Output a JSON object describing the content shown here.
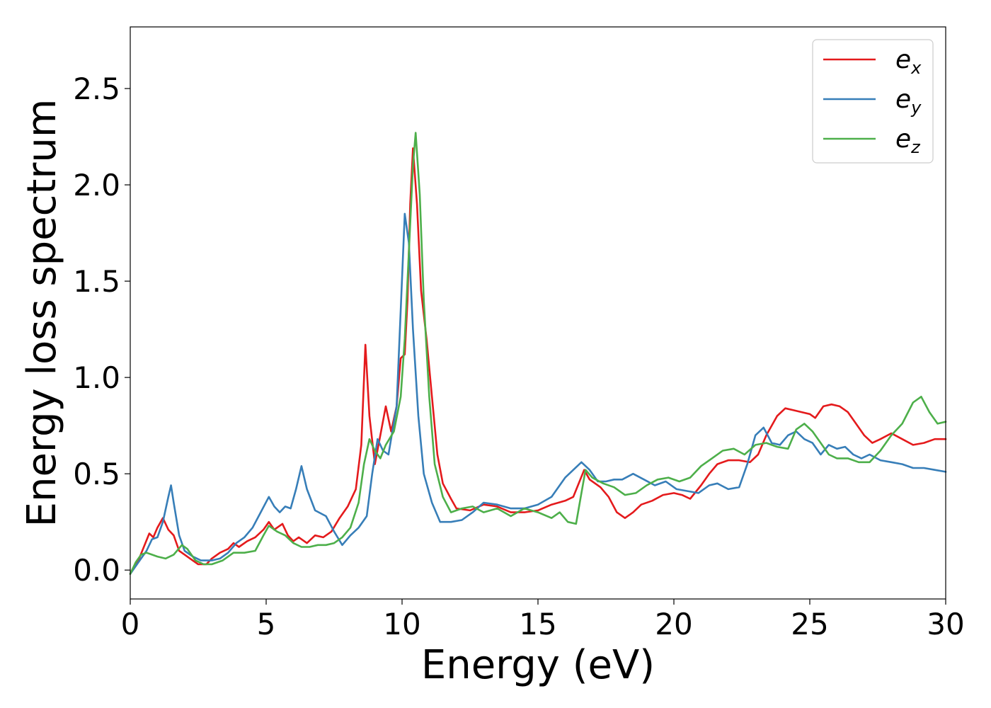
{
  "chart_data": {
    "type": "line",
    "xlabel": "Energy (eV)",
    "ylabel": "Energy loss spectrum",
    "xlim": [
      0,
      30
    ],
    "ylim": [
      -0.15,
      2.82
    ],
    "xticks": [
      0,
      5,
      10,
      15,
      20,
      25,
      30
    ],
    "xtick_labels": [
      "0",
      "5",
      "10",
      "15",
      "20",
      "25",
      "30"
    ],
    "yticks": [
      0.0,
      0.5,
      1.0,
      1.5,
      2.0,
      2.5
    ],
    "ytick_labels": [
      "0.0",
      "0.5",
      "1.0",
      "1.5",
      "2.0",
      "2.5"
    ],
    "grid": false,
    "legend_position": "top-right",
    "series": [
      {
        "name": "e_x",
        "base": "e",
        "sub": "x",
        "color": "#e41a1c",
        "points": [
          [
            0,
            -0.02
          ],
          [
            0.3,
            0.05
          ],
          [
            0.5,
            0.12
          ],
          [
            0.7,
            0.19
          ],
          [
            0.85,
            0.17
          ],
          [
            1.0,
            0.22
          ],
          [
            1.2,
            0.27
          ],
          [
            1.4,
            0.21
          ],
          [
            1.6,
            0.18
          ],
          [
            1.8,
            0.1
          ],
          [
            2.0,
            0.08
          ],
          [
            2.2,
            0.06
          ],
          [
            2.5,
            0.03
          ],
          [
            2.8,
            0.03
          ],
          [
            3.0,
            0.06
          ],
          [
            3.3,
            0.09
          ],
          [
            3.6,
            0.11
          ],
          [
            3.8,
            0.14
          ],
          [
            4.0,
            0.12
          ],
          [
            4.3,
            0.15
          ],
          [
            4.6,
            0.17
          ],
          [
            4.9,
            0.21
          ],
          [
            5.1,
            0.25
          ],
          [
            5.3,
            0.21
          ],
          [
            5.6,
            0.24
          ],
          [
            5.8,
            0.18
          ],
          [
            6.0,
            0.15
          ],
          [
            6.2,
            0.17
          ],
          [
            6.5,
            0.14
          ],
          [
            6.8,
            0.18
          ],
          [
            7.1,
            0.17
          ],
          [
            7.4,
            0.2
          ],
          [
            7.7,
            0.27
          ],
          [
            8.0,
            0.33
          ],
          [
            8.3,
            0.42
          ],
          [
            8.5,
            0.65
          ],
          [
            8.65,
            1.17
          ],
          [
            8.8,
            0.8
          ],
          [
            9.0,
            0.55
          ],
          [
            9.2,
            0.7
          ],
          [
            9.4,
            0.85
          ],
          [
            9.6,
            0.72
          ],
          [
            9.8,
            0.85
          ],
          [
            9.95,
            1.1
          ],
          [
            10.1,
            1.12
          ],
          [
            10.2,
            1.4
          ],
          [
            10.3,
            1.9
          ],
          [
            10.4,
            2.19
          ],
          [
            10.55,
            1.9
          ],
          [
            10.7,
            1.45
          ],
          [
            10.9,
            1.2
          ],
          [
            11.1,
            0.9
          ],
          [
            11.3,
            0.6
          ],
          [
            11.5,
            0.45
          ],
          [
            11.8,
            0.37
          ],
          [
            12.0,
            0.32
          ],
          [
            12.5,
            0.31
          ],
          [
            13.0,
            0.34
          ],
          [
            13.5,
            0.33
          ],
          [
            14.0,
            0.3
          ],
          [
            14.5,
            0.3
          ],
          [
            15.0,
            0.31
          ],
          [
            15.5,
            0.34
          ],
          [
            16.0,
            0.36
          ],
          [
            16.3,
            0.38
          ],
          [
            16.5,
            0.45
          ],
          [
            16.7,
            0.52
          ],
          [
            16.9,
            0.47
          ],
          [
            17.3,
            0.43
          ],
          [
            17.6,
            0.38
          ],
          [
            17.9,
            0.3
          ],
          [
            18.2,
            0.27
          ],
          [
            18.5,
            0.3
          ],
          [
            18.8,
            0.34
          ],
          [
            19.2,
            0.36
          ],
          [
            19.6,
            0.39
          ],
          [
            20.0,
            0.4
          ],
          [
            20.3,
            0.39
          ],
          [
            20.6,
            0.37
          ],
          [
            21.0,
            0.44
          ],
          [
            21.3,
            0.5
          ],
          [
            21.6,
            0.55
          ],
          [
            22.0,
            0.57
          ],
          [
            22.4,
            0.57
          ],
          [
            22.8,
            0.56
          ],
          [
            23.1,
            0.6
          ],
          [
            23.4,
            0.7
          ],
          [
            23.8,
            0.8
          ],
          [
            24.1,
            0.84
          ],
          [
            24.4,
            0.83
          ],
          [
            24.7,
            0.82
          ],
          [
            25.0,
            0.81
          ],
          [
            25.2,
            0.79
          ],
          [
            25.5,
            0.85
          ],
          [
            25.8,
            0.86
          ],
          [
            26.1,
            0.85
          ],
          [
            26.4,
            0.82
          ],
          [
            26.7,
            0.76
          ],
          [
            27.0,
            0.7
          ],
          [
            27.3,
            0.66
          ],
          [
            27.6,
            0.68
          ],
          [
            28.0,
            0.71
          ],
          [
            28.4,
            0.68
          ],
          [
            28.8,
            0.65
          ],
          [
            29.2,
            0.66
          ],
          [
            29.6,
            0.68
          ],
          [
            30.0,
            0.68
          ]
        ]
      },
      {
        "name": "e_y",
        "base": "e",
        "sub": "y",
        "color": "#377eb8",
        "points": [
          [
            0,
            -0.02
          ],
          [
            0.3,
            0.04
          ],
          [
            0.6,
            0.1
          ],
          [
            0.8,
            0.16
          ],
          [
            1.0,
            0.17
          ],
          [
            1.2,
            0.25
          ],
          [
            1.4,
            0.38
          ],
          [
            1.5,
            0.44
          ],
          [
            1.6,
            0.35
          ],
          [
            1.8,
            0.18
          ],
          [
            2.0,
            0.1
          ],
          [
            2.3,
            0.07
          ],
          [
            2.6,
            0.05
          ],
          [
            3.0,
            0.05
          ],
          [
            3.3,
            0.06
          ],
          [
            3.6,
            0.09
          ],
          [
            3.9,
            0.14
          ],
          [
            4.2,
            0.17
          ],
          [
            4.5,
            0.22
          ],
          [
            4.8,
            0.3
          ],
          [
            5.1,
            0.38
          ],
          [
            5.3,
            0.33
          ],
          [
            5.5,
            0.3
          ],
          [
            5.7,
            0.33
          ],
          [
            5.9,
            0.32
          ],
          [
            6.1,
            0.42
          ],
          [
            6.3,
            0.54
          ],
          [
            6.5,
            0.42
          ],
          [
            6.8,
            0.31
          ],
          [
            7.2,
            0.28
          ],
          [
            7.5,
            0.2
          ],
          [
            7.8,
            0.13
          ],
          [
            8.1,
            0.18
          ],
          [
            8.4,
            0.22
          ],
          [
            8.7,
            0.28
          ],
          [
            8.9,
            0.5
          ],
          [
            9.1,
            0.68
          ],
          [
            9.3,
            0.62
          ],
          [
            9.5,
            0.6
          ],
          [
            9.8,
            0.85
          ],
          [
            9.95,
            1.35
          ],
          [
            10.1,
            1.85
          ],
          [
            10.25,
            1.7
          ],
          [
            10.4,
            1.25
          ],
          [
            10.6,
            0.8
          ],
          [
            10.8,
            0.5
          ],
          [
            11.1,
            0.35
          ],
          [
            11.4,
            0.25
          ],
          [
            11.8,
            0.25
          ],
          [
            12.2,
            0.26
          ],
          [
            12.6,
            0.3
          ],
          [
            13.0,
            0.35
          ],
          [
            13.5,
            0.34
          ],
          [
            14.0,
            0.32
          ],
          [
            14.5,
            0.32
          ],
          [
            15.0,
            0.34
          ],
          [
            15.5,
            0.38
          ],
          [
            16.0,
            0.48
          ],
          [
            16.3,
            0.52
          ],
          [
            16.6,
            0.56
          ],
          [
            16.9,
            0.52
          ],
          [
            17.2,
            0.46
          ],
          [
            17.5,
            0.46
          ],
          [
            17.8,
            0.47
          ],
          [
            18.1,
            0.47
          ],
          [
            18.5,
            0.5
          ],
          [
            18.9,
            0.47
          ],
          [
            19.3,
            0.44
          ],
          [
            19.7,
            0.46
          ],
          [
            20.1,
            0.42
          ],
          [
            20.5,
            0.41
          ],
          [
            20.9,
            0.4
          ],
          [
            21.3,
            0.44
          ],
          [
            21.6,
            0.45
          ],
          [
            22.0,
            0.42
          ],
          [
            22.4,
            0.43
          ],
          [
            22.7,
            0.55
          ],
          [
            23.0,
            0.7
          ],
          [
            23.3,
            0.74
          ],
          [
            23.6,
            0.66
          ],
          [
            23.9,
            0.65
          ],
          [
            24.2,
            0.7
          ],
          [
            24.5,
            0.72
          ],
          [
            24.8,
            0.68
          ],
          [
            25.1,
            0.66
          ],
          [
            25.4,
            0.6
          ],
          [
            25.7,
            0.65
          ],
          [
            26.0,
            0.63
          ],
          [
            26.3,
            0.64
          ],
          [
            26.6,
            0.6
          ],
          [
            26.9,
            0.58
          ],
          [
            27.2,
            0.6
          ],
          [
            27.6,
            0.57
          ],
          [
            28.0,
            0.56
          ],
          [
            28.4,
            0.55
          ],
          [
            28.8,
            0.53
          ],
          [
            29.2,
            0.53
          ],
          [
            29.6,
            0.52
          ],
          [
            30.0,
            0.51
          ]
        ]
      },
      {
        "name": "e_z",
        "base": "e",
        "sub": "z",
        "color": "#4daf4a",
        "points": [
          [
            0,
            -0.02
          ],
          [
            0.2,
            0.04
          ],
          [
            0.4,
            0.08
          ],
          [
            0.6,
            0.09
          ],
          [
            0.8,
            0.08
          ],
          [
            1.0,
            0.07
          ],
          [
            1.3,
            0.06
          ],
          [
            1.6,
            0.08
          ],
          [
            1.9,
            0.13
          ],
          [
            2.1,
            0.11
          ],
          [
            2.4,
            0.05
          ],
          [
            2.7,
            0.03
          ],
          [
            3.0,
            0.03
          ],
          [
            3.4,
            0.05
          ],
          [
            3.8,
            0.09
          ],
          [
            4.2,
            0.09
          ],
          [
            4.6,
            0.1
          ],
          [
            4.9,
            0.18
          ],
          [
            5.1,
            0.23
          ],
          [
            5.4,
            0.2
          ],
          [
            5.7,
            0.18
          ],
          [
            6.0,
            0.14
          ],
          [
            6.3,
            0.12
          ],
          [
            6.6,
            0.12
          ],
          [
            6.9,
            0.13
          ],
          [
            7.2,
            0.13
          ],
          [
            7.5,
            0.14
          ],
          [
            7.8,
            0.17
          ],
          [
            8.1,
            0.22
          ],
          [
            8.4,
            0.35
          ],
          [
            8.6,
            0.55
          ],
          [
            8.8,
            0.68
          ],
          [
            9.0,
            0.62
          ],
          [
            9.2,
            0.58
          ],
          [
            9.4,
            0.65
          ],
          [
            9.7,
            0.72
          ],
          [
            9.95,
            0.9
          ],
          [
            10.1,
            1.2
          ],
          [
            10.25,
            1.65
          ],
          [
            10.4,
            2.1
          ],
          [
            10.5,
            2.27
          ],
          [
            10.65,
            1.95
          ],
          [
            10.8,
            1.4
          ],
          [
            11.0,
            0.9
          ],
          [
            11.2,
            0.55
          ],
          [
            11.5,
            0.38
          ],
          [
            11.8,
            0.3
          ],
          [
            12.2,
            0.32
          ],
          [
            12.6,
            0.33
          ],
          [
            13.0,
            0.3
          ],
          [
            13.5,
            0.32
          ],
          [
            14.0,
            0.28
          ],
          [
            14.5,
            0.32
          ],
          [
            15.0,
            0.3
          ],
          [
            15.5,
            0.27
          ],
          [
            15.8,
            0.3
          ],
          [
            16.1,
            0.25
          ],
          [
            16.4,
            0.24
          ],
          [
            16.6,
            0.4
          ],
          [
            16.75,
            0.52
          ],
          [
            17.0,
            0.48
          ],
          [
            17.4,
            0.45
          ],
          [
            17.8,
            0.43
          ],
          [
            18.2,
            0.39
          ],
          [
            18.6,
            0.4
          ],
          [
            19.0,
            0.44
          ],
          [
            19.4,
            0.47
          ],
          [
            19.8,
            0.48
          ],
          [
            20.2,
            0.46
          ],
          [
            20.6,
            0.48
          ],
          [
            21.0,
            0.54
          ],
          [
            21.4,
            0.58
          ],
          [
            21.8,
            0.62
          ],
          [
            22.2,
            0.63
          ],
          [
            22.6,
            0.6
          ],
          [
            23.0,
            0.65
          ],
          [
            23.4,
            0.66
          ],
          [
            23.8,
            0.64
          ],
          [
            24.2,
            0.63
          ],
          [
            24.5,
            0.73
          ],
          [
            24.8,
            0.76
          ],
          [
            25.1,
            0.72
          ],
          [
            25.4,
            0.66
          ],
          [
            25.7,
            0.6
          ],
          [
            26.0,
            0.58
          ],
          [
            26.4,
            0.58
          ],
          [
            26.8,
            0.56
          ],
          [
            27.2,
            0.56
          ],
          [
            27.6,
            0.62
          ],
          [
            28.0,
            0.7
          ],
          [
            28.4,
            0.76
          ],
          [
            28.8,
            0.87
          ],
          [
            29.1,
            0.9
          ],
          [
            29.4,
            0.82
          ],
          [
            29.7,
            0.76
          ],
          [
            30.0,
            0.77
          ]
        ]
      }
    ]
  }
}
